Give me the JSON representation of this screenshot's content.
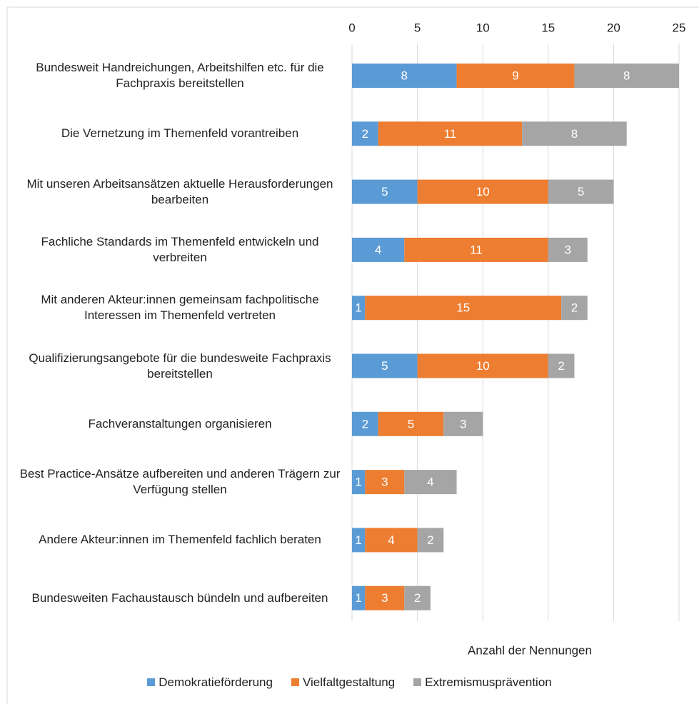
{
  "chart_data": {
    "type": "stacked_bar_horizontal",
    "categories": [
      "Bundesweit Handreichungen, Arbeitshilfen etc. für die Fachpraxis bereitstellen",
      "Die Vernetzung im Themenfeld vorantreiben",
      "Mit unseren Arbeitsansätzen aktuelle Herausforderungen bearbeiten",
      "Fachliche Standards im Themenfeld entwickeln und verbreiten",
      "Mit anderen Akteur:innen gemeinsam fachpolitische Interessen im Themenfeld vertreten",
      "Qualifizierungsangebote für die bundesweite Fachpraxis bereitstellen",
      "Fachveranstaltungen organisieren",
      "Best Practice-Ansätze aufbereiten und anderen Trägern zur Verfügung stellen",
      "Andere Akteur:innen im Themenfeld fachlich beraten",
      "Bundesweiten Fachaustausch bündeln und aufbereiten"
    ],
    "series": [
      {
        "name": "Demokratieförderung",
        "color": "#5b9bd5",
        "values": [
          8,
          2,
          5,
          4,
          1,
          5,
          2,
          1,
          1,
          1
        ]
      },
      {
        "name": "Vielfaltgestaltung",
        "color": "#ed7d31",
        "values": [
          9,
          11,
          10,
          11,
          15,
          10,
          5,
          3,
          4,
          3
        ]
      },
      {
        "name": "Extremismusprävention",
        "color": "#a5a5a5",
        "values": [
          8,
          8,
          5,
          3,
          2,
          2,
          3,
          4,
          2,
          2
        ]
      }
    ],
    "xlabel": "Anzahl der Nennungen",
    "xlim": [
      0,
      25
    ],
    "xticks": [
      0,
      5,
      10,
      15,
      20,
      25
    ],
    "grid": true,
    "legend": "bottom"
  }
}
